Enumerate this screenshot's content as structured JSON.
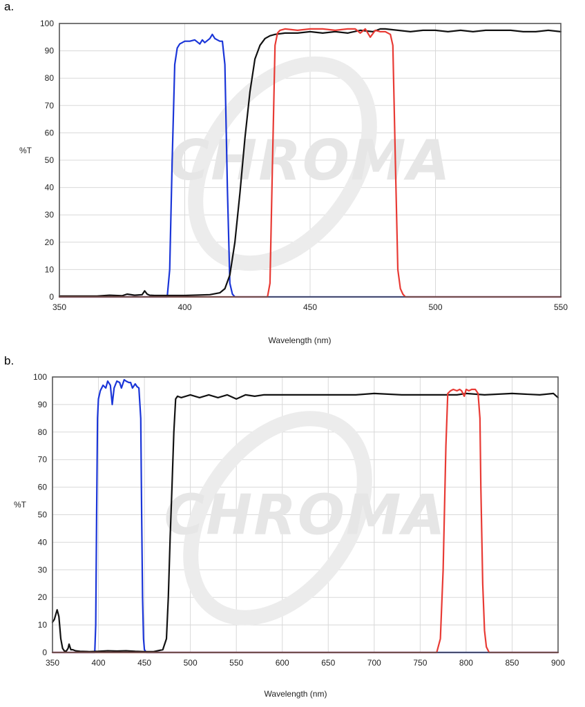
{
  "figure": {
    "watermark": "CHROMA"
  },
  "charts": [
    {
      "panel_label": "a.",
      "ylabel": "%T",
      "xlabel": "Wavelength (nm)",
      "xticks": [
        "350",
        "400",
        "450",
        "500",
        "550"
      ],
      "yticks": [
        "0",
        "10",
        "20",
        "30",
        "40",
        "50",
        "60",
        "70",
        "80",
        "90",
        "100"
      ]
    },
    {
      "panel_label": "b.",
      "ylabel": "%T",
      "xlabel": "Wavelength (nm)",
      "xticks": [
        "350",
        "400",
        "450",
        "500",
        "550",
        "600",
        "650",
        "700",
        "750",
        "800",
        "850",
        "900"
      ],
      "yticks": [
        "0",
        "10",
        "20",
        "30",
        "40",
        "50",
        "60",
        "70",
        "80",
        "90",
        "100"
      ]
    }
  ],
  "chart_data": [
    {
      "type": "line",
      "xlabel": "Wavelength (nm)",
      "ylabel": "%T",
      "xlim": [
        350,
        550
      ],
      "ylim": [
        0,
        100
      ],
      "grid": true,
      "series": [
        {
          "color": "#1a35d8",
          "x": [
            350,
            393,
            394,
            395,
            396,
            397,
            398,
            400,
            402,
            404,
            406,
            407,
            408,
            410,
            411,
            412,
            413,
            414,
            415,
            416,
            417,
            418,
            419,
            420,
            550
          ],
          "y": [
            0,
            0,
            10,
            50,
            85,
            91,
            92.5,
            93.5,
            93.5,
            94,
            92.5,
            94,
            93,
            94.5,
            96,
            94.5,
            94,
            93.5,
            93.5,
            85,
            40,
            5,
            1,
            0,
            0
          ]
        },
        {
          "color": "#111111",
          "x": [
            350,
            365,
            370,
            375,
            377,
            380,
            383,
            384,
            385,
            386,
            388,
            400,
            410,
            414,
            416,
            418,
            420,
            422,
            424,
            426,
            428,
            430,
            432,
            433,
            434,
            436,
            440,
            445,
            450,
            455,
            460,
            465,
            470,
            475,
            478,
            480,
            485,
            490,
            495,
            500,
            505,
            510,
            515,
            520,
            525,
            530,
            535,
            540,
            545,
            550
          ],
          "y": [
            0.3,
            0.3,
            0.6,
            0.4,
            1,
            0.6,
            0.8,
            2.2,
            1,
            0.6,
            0.5,
            0.5,
            0.8,
            1.5,
            3,
            8,
            20,
            38,
            58,
            75,
            87,
            92,
            94.5,
            95,
            95.5,
            96,
            96.5,
            96.5,
            97,
            96.5,
            97,
            96.5,
            97.5,
            97,
            98,
            98,
            97.5,
            97,
            97.5,
            97.5,
            97,
            97.5,
            97,
            97.5,
            97.5,
            97.5,
            97,
            97,
            97.5,
            97
          ]
        },
        {
          "color": "#e83a34",
          "x": [
            350,
            433,
            434,
            435,
            436,
            437,
            438,
            440,
            445,
            450,
            455,
            460,
            465,
            468,
            470,
            472,
            474,
            476,
            478,
            480,
            482,
            483,
            484,
            485,
            486,
            487,
            488,
            550
          ],
          "y": [
            0,
            0,
            5,
            50,
            92,
            96.5,
            97.5,
            98,
            97.5,
            98,
            98,
            97.5,
            98,
            98,
            96.5,
            98,
            95,
            97.5,
            97,
            97,
            96,
            92,
            50,
            10,
            3,
            1,
            0,
            0
          ]
        }
      ]
    },
    {
      "type": "line",
      "xlabel": "Wavelength (nm)",
      "ylabel": "%T",
      "xlim": [
        350,
        900
      ],
      "ylim": [
        0,
        100
      ],
      "grid": true,
      "series": [
        {
          "color": "#1a35d8",
          "x": [
            350,
            396,
            397,
            398,
            399,
            400,
            402,
            405,
            408,
            410,
            413,
            415,
            417,
            420,
            423,
            425,
            428,
            430,
            433,
            435,
            437,
            440,
            442,
            444,
            446,
            447,
            448,
            449,
            450,
            452,
            900
          ],
          "y": [
            0,
            0,
            10,
            50,
            85,
            92,
            95,
            97,
            96,
            98.5,
            97,
            90,
            96,
            98.5,
            98,
            96,
            99,
            98.5,
            98,
            98,
            96,
            97.5,
            96.5,
            96,
            85,
            50,
            20,
            5,
            1,
            0,
            0
          ]
        },
        {
          "color": "#111111",
          "x": [
            350,
            352,
            355,
            357,
            359,
            361,
            363,
            365,
            367,
            368,
            370,
            372,
            375,
            380,
            390,
            400,
            410,
            420,
            430,
            440,
            450,
            460,
            470,
            474,
            476,
            478,
            480,
            482,
            484,
            486,
            490,
            500,
            510,
            520,
            530,
            540,
            550,
            560,
            570,
            580,
            600,
            620,
            650,
            680,
            700,
            730,
            760,
            790,
            800,
            820,
            850,
            880,
            895,
            900
          ],
          "y": [
            11,
            12,
            15.5,
            13,
            5,
            1.5,
            0.5,
            0.5,
            1.5,
            3,
            1,
            1,
            0.6,
            0.4,
            0.3,
            0.4,
            0.6,
            0.5,
            0.6,
            0.4,
            0.3,
            0.3,
            1,
            5,
            20,
            42,
            60,
            80,
            92,
            93,
            92.5,
            93.5,
            92.5,
            93.5,
            92.5,
            93.5,
            92,
            93.5,
            93,
            93.5,
            93.5,
            93.5,
            93.5,
            93.5,
            94,
            93.5,
            93.5,
            93.5,
            94,
            93.5,
            94,
            93.5,
            94,
            92.5
          ]
        },
        {
          "color": "#e83a34",
          "x": [
            350,
            768,
            772,
            775,
            778,
            780,
            783,
            786,
            790,
            793,
            795,
            798,
            800,
            803,
            806,
            810,
            813,
            815,
            816,
            818,
            820,
            822,
            825,
            900
          ],
          "y": [
            0,
            0,
            5,
            30,
            75,
            94,
            95,
            95.5,
            95,
            95.5,
            95,
            93,
            95.5,
            95,
            95.5,
            95.5,
            94,
            85,
            60,
            25,
            8,
            2,
            0,
            0
          ]
        }
      ]
    }
  ]
}
